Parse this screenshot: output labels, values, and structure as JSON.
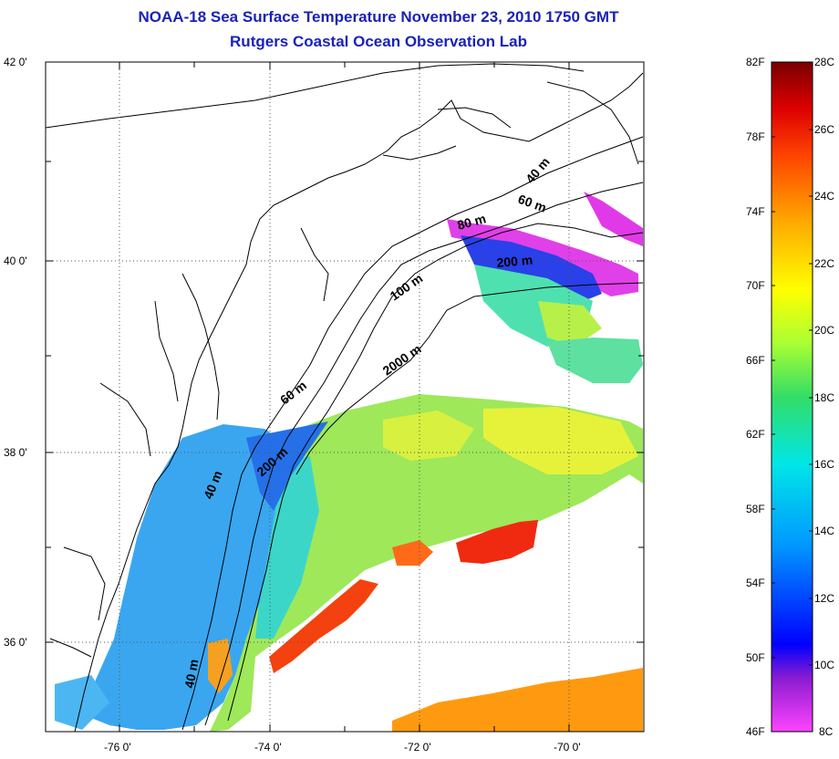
{
  "title": "NOAA-18 Sea Surface Temperature November 23, 2010 1750 GMT",
  "subtitle": "Rutgers Coastal Ocean Observation Lab",
  "map": {
    "lat_ticks": [
      "42 0'",
      "40 0'",
      "38 0'",
      "36 0'"
    ],
    "lon_ticks": [
      "-76 0'",
      "-74 0'",
      "-72 0'",
      "-70 0'"
    ],
    "grid": "dotted",
    "isobath_labels": [
      "40 m",
      "60 m",
      "80 m",
      "200 m",
      "100 m",
      "2000 m",
      "60 m",
      "200 m",
      "40 m",
      "40 m"
    ],
    "colors": {
      "land_outline": "#000000",
      "background": "#ffffff"
    }
  },
  "colorbar": {
    "fahrenheit_labels": [
      "82F",
      "78F",
      "74F",
      "70F",
      "66F",
      "62F",
      "58F",
      "54F",
      "50F",
      "46F"
    ],
    "celsius_labels": [
      "28C",
      "26C",
      "24C",
      "22C",
      "20C",
      "18C",
      "16C",
      "14C",
      "12C",
      "10C",
      "8C"
    ],
    "stops": [
      "#ff44ff",
      "#8a1cd0",
      "#0000ff",
      "#0099ff",
      "#00e6e6",
      "#33dd66",
      "#aaff33",
      "#ffff00",
      "#ffaa00",
      "#ff4400",
      "#dd0000",
      "#7a0000"
    ]
  }
}
